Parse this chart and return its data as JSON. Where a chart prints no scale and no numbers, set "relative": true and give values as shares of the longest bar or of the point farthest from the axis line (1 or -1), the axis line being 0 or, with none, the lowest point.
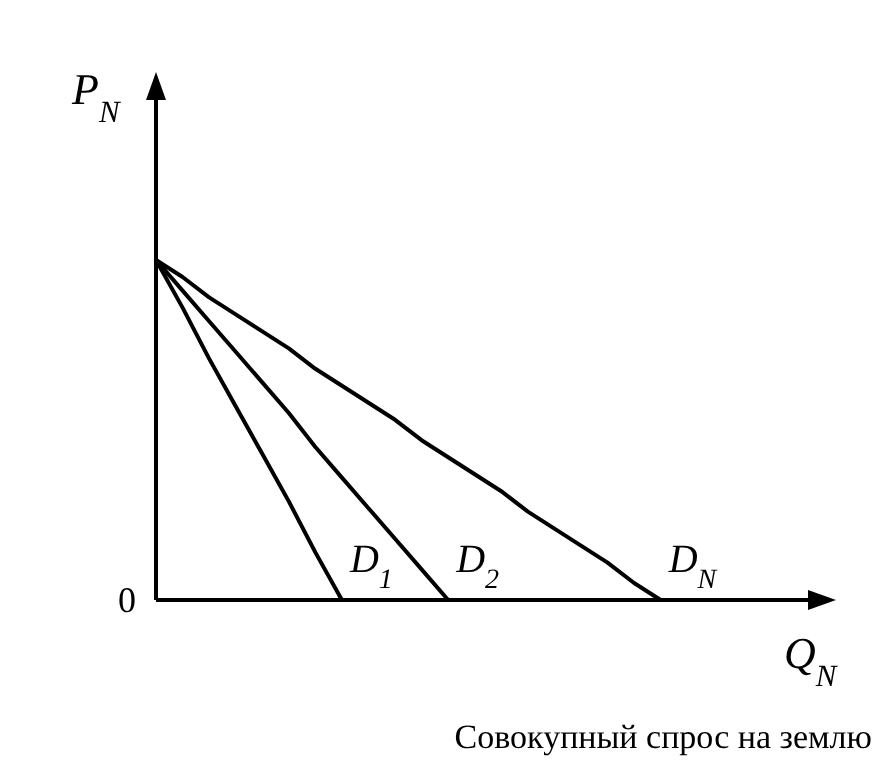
{
  "chart_data": {
    "type": "line",
    "relative": true,
    "xlabel": "Q$_{N}$",
    "ylabel": "P$_{N}$",
    "categories": [
      null,
      null,
      null,
      null,
      null,
      null,
      null,
      null,
      null,
      null,
      null,
      null,
      null,
      null,
      null,
      null,
      null,
      null,
      null,
      null,
      null,
      null,
      null,
      null,
      null,
      null
    ],
    "series": [
      {
        "name": "D$_{1}$",
        "color": "#000000",
        "values": [
          1,
          0.86,
          0.71,
          0.57,
          0.43,
          0.29,
          0.14,
          0,
          null,
          null,
          null,
          null,
          null,
          null,
          null,
          null,
          null,
          null,
          null,
          null,
          null,
          null,
          null,
          null,
          null,
          null
        ]
      },
      {
        "name": "D$_{2}$",
        "color": "#000000",
        "values": [
          1,
          0.91,
          0.82,
          0.73,
          0.64,
          0.55,
          0.45,
          0.36,
          0.27,
          0.18,
          0.09,
          0,
          null,
          null,
          null,
          null,
          null,
          null,
          null,
          null,
          null,
          null,
          null,
          null,
          null,
          null
        ]
      },
      {
        "name": "D$_{N}$",
        "color": "#000000",
        "values": [
          1,
          0.95,
          0.89,
          0.84,
          0.79,
          0.74,
          0.68,
          0.63,
          0.58,
          0.53,
          0.47,
          0.42,
          0.37,
          0.32,
          0.26,
          0.21,
          0.16,
          0.11,
          0.05,
          0,
          null,
          null,
          null,
          null,
          null,
          null
        ]
      }
    ],
    "annotations": [
      "0",
      "Совокупный спрос на землю"
    ]
  }
}
